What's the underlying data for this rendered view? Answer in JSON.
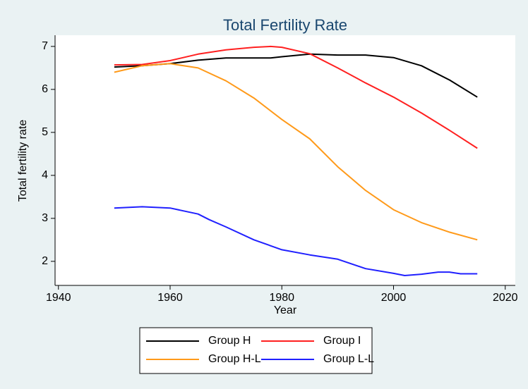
{
  "chart_data": {
    "type": "line",
    "title": "Total Fertility Rate",
    "x_label": "Year",
    "y_label": "Total fertility rate",
    "xlim": [
      1939.4,
      2021.8
    ],
    "xticks": [
      1940,
      1960,
      1980,
      2000,
      2020
    ],
    "ylim": [
      1.44,
      7.26
    ],
    "yticks": [
      2,
      3,
      4,
      5,
      6,
      7
    ],
    "grid": false,
    "legend": "bottom",
    "series": [
      {
        "name": "Group H",
        "color": "#000000",
        "x": [
          1950,
          1955,
          1960,
          1965,
          1970,
          1975,
          1978,
          1980,
          1985,
          1990,
          1995,
          2000,
          2005,
          2010,
          2015
        ],
        "values": [
          6.52,
          6.55,
          6.6,
          6.68,
          6.73,
          6.73,
          6.73,
          6.76,
          6.82,
          6.8,
          6.8,
          6.74,
          6.55,
          6.22,
          5.82
        ]
      },
      {
        "name": "Group I",
        "color": "#ff2020",
        "x": [
          1950,
          1955,
          1960,
          1965,
          1970,
          1975,
          1978,
          1980,
          1985,
          1990,
          1995,
          2000,
          2005,
          2010,
          2015
        ],
        "values": [
          6.57,
          6.58,
          6.67,
          6.82,
          6.92,
          6.98,
          7.0,
          6.98,
          6.83,
          6.5,
          6.15,
          5.82,
          5.45,
          5.05,
          4.63
        ]
      },
      {
        "name": "Group H-L",
        "color": "#ff9a1a",
        "x": [
          1950,
          1955,
          1960,
          1965,
          1970,
          1975,
          1980,
          1985,
          1990,
          1995,
          2000,
          2005,
          2010,
          2015
        ],
        "values": [
          6.4,
          6.55,
          6.6,
          6.5,
          6.2,
          5.8,
          5.3,
          4.85,
          4.2,
          3.65,
          3.2,
          2.9,
          2.68,
          2.5
        ]
      },
      {
        "name": "Group L-L",
        "color": "#2020ff",
        "x": [
          1950,
          1955,
          1960,
          1965,
          1967,
          1970,
          1975,
          1980,
          1985,
          1990,
          1995,
          2000,
          2002,
          2005,
          2008,
          2010,
          2012,
          2015
        ],
        "values": [
          3.24,
          3.27,
          3.24,
          3.1,
          2.97,
          2.8,
          2.5,
          2.27,
          2.15,
          2.05,
          1.83,
          1.72,
          1.67,
          1.7,
          1.75,
          1.75,
          1.71,
          1.71
        ]
      }
    ]
  }
}
